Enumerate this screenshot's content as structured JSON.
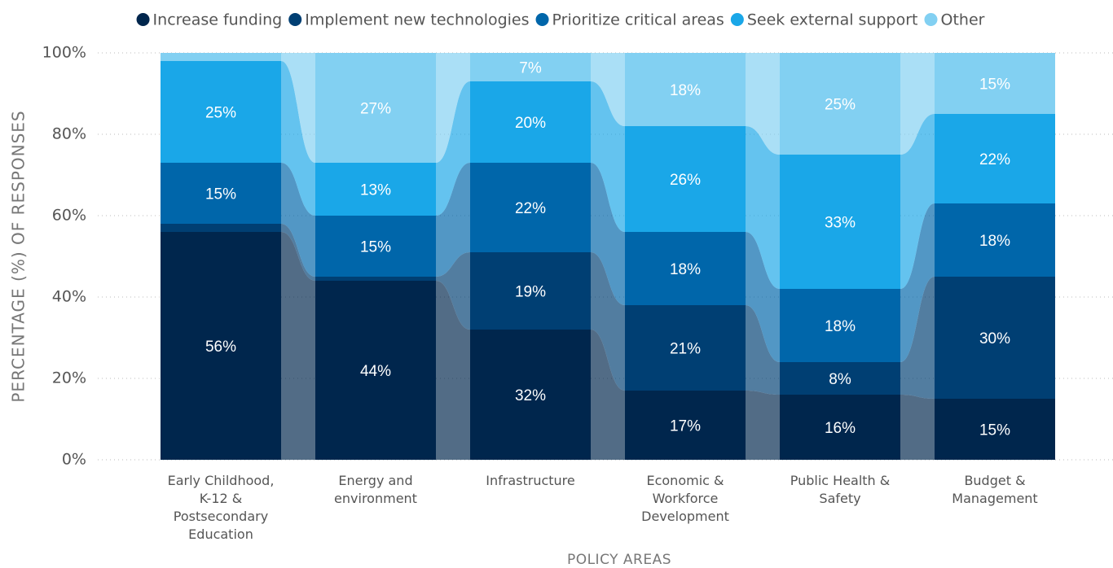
{
  "chart_data": {
    "type": "stacked-bar-flow",
    "categories": [
      "Early Childhood, K-12 & Postsecondary Education",
      "Energy and environment",
      "Infrastructure",
      "Economic & Workforce Development",
      "Public Health & Safety",
      "Budget & Management"
    ],
    "series": [
      {
        "name": "Increase funding",
        "color": "#00264d",
        "values": [
          56,
          44,
          32,
          17,
          16,
          15
        ],
        "value_labels": [
          "56%",
          "44%",
          "32%",
          "17%",
          "16%",
          "15%"
        ]
      },
      {
        "name": "Implement new technologies",
        "color": "#003f73",
        "values": [
          2,
          1,
          19,
          21,
          8,
          30
        ],
        "value_labels": [
          null,
          null,
          "19%",
          "21%",
          "8%",
          "30%"
        ]
      },
      {
        "name": "Prioritize critical areas",
        "color": "#0066aa",
        "values": [
          15,
          15,
          22,
          18,
          18,
          18
        ],
        "value_labels": [
          "15%",
          "15%",
          "22%",
          "18%",
          "18%",
          "18%"
        ]
      },
      {
        "name": "Seek external support",
        "color": "#1aa7e8",
        "values": [
          25,
          13,
          20,
          26,
          33,
          22
        ],
        "value_labels": [
          "25%",
          "13%",
          "20%",
          "26%",
          "33%",
          "22%"
        ]
      },
      {
        "name": "Other",
        "color": "#82d0f2",
        "values": [
          2,
          27,
          7,
          18,
          25,
          15
        ],
        "value_labels": [
          null,
          "27%",
          "7%",
          "18%",
          "25%",
          "15%"
        ]
      }
    ],
    "x_label": "POLICY AREAS",
    "y_label": "PERCENTAGE (%) OF RESPONSES",
    "ylim": [
      0,
      100
    ],
    "yticks": [
      {
        "value": 0,
        "label": "0%"
      },
      {
        "value": 20,
        "label": "20%"
      },
      {
        "value": 40,
        "label": "40%"
      },
      {
        "value": 60,
        "label": "60%"
      },
      {
        "value": 80,
        "label": "80%"
      },
      {
        "value": 100,
        "label": "100%"
      }
    ],
    "grid": true,
    "legend": "top"
  }
}
